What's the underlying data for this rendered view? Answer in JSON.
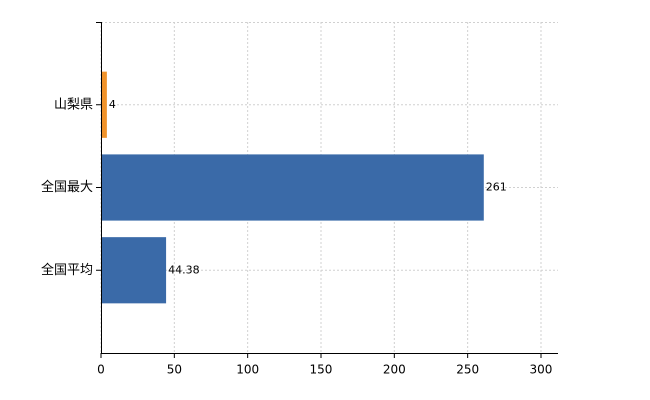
{
  "chart_data": {
    "type": "hbar",
    "categories": [
      "山梨県",
      "全国最大",
      "全国平均"
    ],
    "values": [
      4,
      261,
      44.38
    ],
    "colors": [
      "#f0932b",
      "#3a6aa8",
      "#3a6aa8"
    ],
    "xlim": [
      0,
      311.6
    ],
    "xticks": [
      0,
      50,
      100,
      150,
      200,
      250,
      300
    ],
    "grid": true
  }
}
